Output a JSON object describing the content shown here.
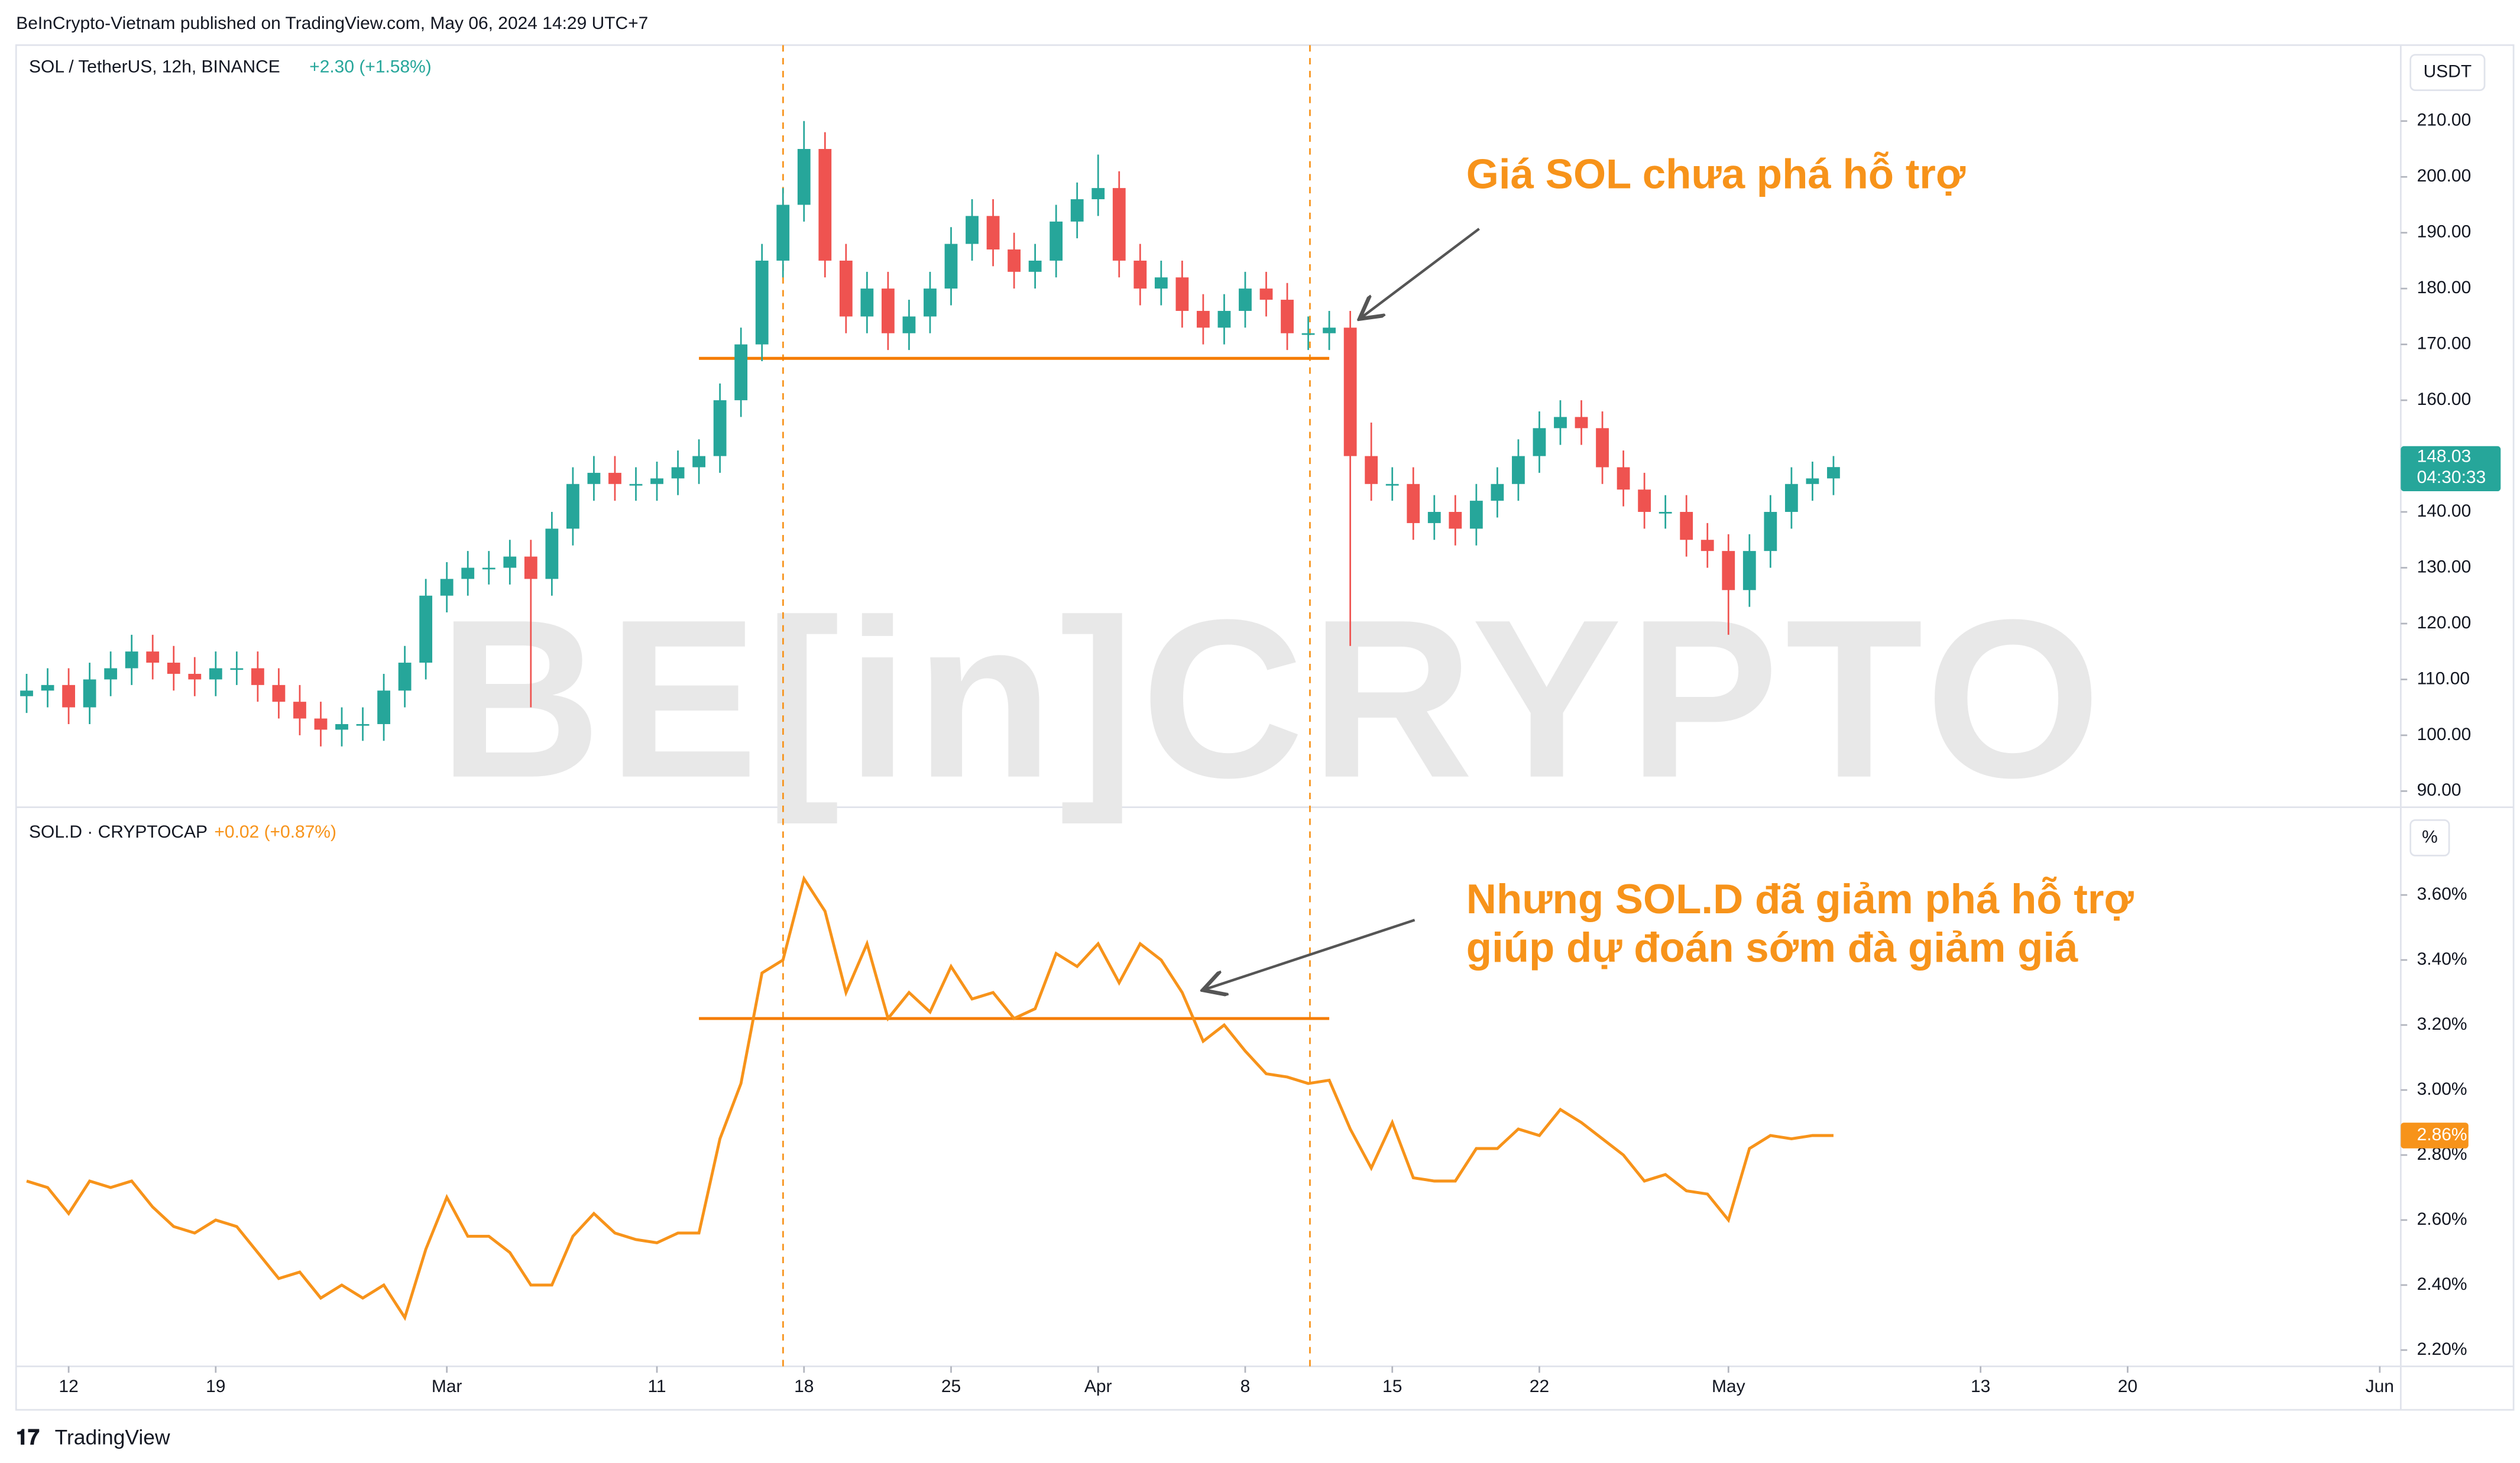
{
  "header": "BeInCrypto-Vietnam published on TradingView.com, May 06, 2024 14:29 UTC+7",
  "footer": "TradingView",
  "watermark": "BE[in]CRYPTO",
  "chart_data": [
    {
      "type": "candlestick",
      "title": "SOL / TetherUS, 12h, BINANCE",
      "change": "+2.30 (+1.58%)",
      "axis_label": "USDT",
      "annotation": "Giá SOL chưa phá hỗ trợ",
      "up_color": "#26a69a",
      "down_color": "#ef5350",
      "xlim": [
        "2024-02-09T12:00",
        "2024-06-02"
      ],
      "ylim": [
        87.4,
        223.6
      ],
      "yticks": [
        {
          "value": 90,
          "label": "90.00"
        },
        {
          "value": 100,
          "label": "100.00"
        },
        {
          "value": 110,
          "label": "110.00"
        },
        {
          "value": 120,
          "label": "120.00"
        },
        {
          "value": 130,
          "label": "130.00"
        },
        {
          "value": 140,
          "label": "140.00"
        },
        {
          "value": 150,
          "label": "150.00"
        },
        {
          "value": 160,
          "label": "160.00"
        },
        {
          "value": 170,
          "label": "170.00"
        },
        {
          "value": 180,
          "label": "180.00"
        },
        {
          "value": 190,
          "label": "190.00"
        },
        {
          "value": 200,
          "label": "200.00"
        },
        {
          "value": 210,
          "label": "210.00"
        }
      ],
      "last_price": {
        "value": 148.03,
        "label": "148.03",
        "countdown": "04:30:33"
      },
      "support": 167.5,
      "support_range": [
        "2024-03-13",
        "2024-04-12"
      ],
      "x": [
        "2024-02-10",
        "2024-02-11",
        "2024-02-12",
        "2024-02-13",
        "2024-02-14",
        "2024-02-15",
        "2024-02-16",
        "2024-02-17",
        "2024-02-18",
        "2024-02-19",
        "2024-02-20",
        "2024-02-21",
        "2024-02-22",
        "2024-02-23",
        "2024-02-24",
        "2024-02-25",
        "2024-02-26",
        "2024-02-27",
        "2024-02-28",
        "2024-02-29",
        "2024-03-01",
        "2024-03-02",
        "2024-03-03",
        "2024-03-04",
        "2024-03-05",
        "2024-03-06",
        "2024-03-07",
        "2024-03-08",
        "2024-03-09",
        "2024-03-10",
        "2024-03-11",
        "2024-03-12",
        "2024-03-13",
        "2024-03-14",
        "2024-03-15",
        "2024-03-16",
        "2024-03-17",
        "2024-03-18",
        "2024-03-19",
        "2024-03-20",
        "2024-03-21",
        "2024-03-22",
        "2024-03-23",
        "2024-03-24",
        "2024-03-25",
        "2024-03-26",
        "2024-03-27",
        "2024-03-28",
        "2024-03-29",
        "2024-03-30",
        "2024-03-31",
        "2024-04-01",
        "2024-04-02",
        "2024-04-03",
        "2024-04-04",
        "2024-04-05",
        "2024-04-06",
        "2024-04-07",
        "2024-04-08",
        "2024-04-09",
        "2024-04-10",
        "2024-04-11",
        "2024-04-12",
        "2024-04-13",
        "2024-04-14",
        "2024-04-15",
        "2024-04-16",
        "2024-04-17",
        "2024-04-18",
        "2024-04-19",
        "2024-04-20",
        "2024-04-21",
        "2024-04-22",
        "2024-04-23",
        "2024-04-24",
        "2024-04-25",
        "2024-04-26",
        "2024-04-27",
        "2024-04-28",
        "2024-04-29",
        "2024-04-30",
        "2024-05-01",
        "2024-05-02",
        "2024-05-03",
        "2024-05-04",
        "2024-05-05",
        "2024-05-06"
      ],
      "open": [
        107,
        108,
        109,
        105,
        110,
        112,
        115,
        113,
        111,
        110,
        112,
        112,
        109,
        106,
        103,
        101,
        102,
        102,
        108,
        113,
        125,
        128,
        130,
        130,
        132,
        128,
        137,
        145,
        147,
        145,
        145,
        146,
        148,
        150,
        160,
        170,
        185,
        195,
        205,
        185,
        175,
        180,
        172,
        175,
        180,
        188,
        193,
        187,
        183,
        185,
        192,
        196,
        198,
        185,
        180,
        182,
        176,
        173,
        176,
        180,
        178,
        172,
        172,
        173,
        150,
        145,
        145,
        138,
        140,
        137,
        142,
        145,
        150,
        155,
        157,
        155,
        148,
        144,
        140,
        140,
        135,
        133,
        126,
        133,
        140,
        145,
        146
      ],
      "high": [
        111,
        112,
        112,
        113,
        115,
        118,
        118,
        116,
        114,
        115,
        115,
        115,
        112,
        109,
        106,
        105,
        105,
        111,
        116,
        128,
        131,
        133,
        133,
        135,
        135,
        140,
        148,
        150,
        150,
        148,
        149,
        151,
        153,
        163,
        173,
        188,
        198,
        210,
        208,
        188,
        183,
        183,
        178,
        183,
        191,
        196,
        196,
        190,
        188,
        195,
        199,
        204,
        201,
        188,
        185,
        185,
        179,
        179,
        183,
        183,
        181,
        175,
        176,
        176,
        156,
        148,
        148,
        143,
        143,
        145,
        148,
        153,
        158,
        160,
        160,
        158,
        151,
        147,
        143,
        143,
        138,
        136,
        136,
        143,
        148,
        149,
        150
      ],
      "low": [
        104,
        105,
        102,
        102,
        107,
        109,
        110,
        108,
        107,
        107,
        109,
        106,
        103,
        100,
        98,
        98,
        99,
        99,
        105,
        110,
        122,
        125,
        127,
        127,
        105,
        125,
        134,
        142,
        142,
        142,
        142,
        143,
        145,
        147,
        157,
        167,
        182,
        192,
        182,
        172,
        172,
        169,
        169,
        172,
        177,
        185,
        184,
        180,
        180,
        182,
        189,
        193,
        182,
        177,
        177,
        173,
        170,
        170,
        173,
        175,
        169,
        169,
        169,
        116,
        142,
        142,
        135,
        135,
        134,
        134,
        139,
        142,
        147,
        152,
        152,
        145,
        141,
        137,
        137,
        132,
        130,
        118,
        123,
        130,
        137,
        142,
        143
      ],
      "close": [
        108,
        109,
        105,
        110,
        112,
        115,
        113,
        111,
        110,
        112,
        112,
        109,
        106,
        103,
        101,
        102,
        102,
        108,
        113,
        125,
        128,
        130,
        130,
        132,
        128,
        137,
        145,
        147,
        145,
        145,
        146,
        148,
        150,
        160,
        170,
        185,
        195,
        205,
        185,
        175,
        180,
        172,
        175,
        180,
        188,
        193,
        187,
        183,
        185,
        192,
        196,
        198,
        185,
        180,
        182,
        176,
        173,
        176,
        180,
        178,
        172,
        172,
        173,
        150,
        145,
        145,
        138,
        140,
        137,
        142,
        145,
        150,
        155,
        157,
        155,
        148,
        144,
        140,
        140,
        135,
        133,
        126,
        133,
        140,
        145,
        146,
        148.03
      ]
    },
    {
      "type": "line",
      "title": "SOL.D · CRYPTOCAP",
      "change": "+0.02 (+0.87%)",
      "axis_label": "%",
      "annotation": [
        "Nhưng SOL.D đã giảm phá hỗ trợ",
        "giúp dự đoán sớm đà giảm giá"
      ],
      "color": "#f7931a",
      "xlim": [
        "2024-02-09T12:00",
        "2024-06-02"
      ],
      "ylim": [
        2.15,
        3.86
      ],
      "yticks": [
        {
          "value": 2.2,
          "label": "2.20%"
        },
        {
          "value": 2.4,
          "label": "2.40%"
        },
        {
          "value": 2.6,
          "label": "2.60%"
        },
        {
          "value": 2.8,
          "label": "2.80%"
        },
        {
          "value": 3.0,
          "label": "3.00%"
        },
        {
          "value": 3.2,
          "label": "3.20%"
        },
        {
          "value": 3.4,
          "label": "3.40%"
        },
        {
          "value": 3.6,
          "label": "3.60%"
        }
      ],
      "xticks": [
        {
          "value": "2024-02-12",
          "label": "12"
        },
        {
          "value": "2024-02-19",
          "label": "19"
        },
        {
          "value": "2024-03-01",
          "label": "Mar"
        },
        {
          "value": "2024-03-11",
          "label": "11"
        },
        {
          "value": "2024-03-18",
          "label": "18"
        },
        {
          "value": "2024-03-25",
          "label": "25"
        },
        {
          "value": "2024-04-01",
          "label": "Apr"
        },
        {
          "value": "2024-04-08",
          "label": "8"
        },
        {
          "value": "2024-04-15",
          "label": "15"
        },
        {
          "value": "2024-04-22",
          "label": "22"
        },
        {
          "value": "2024-05-01",
          "label": "May"
        },
        {
          "value": "2024-05-13",
          "label": "13"
        },
        {
          "value": "2024-05-20",
          "label": "20"
        },
        {
          "value": "2024-06-01",
          "label": "Jun"
        }
      ],
      "last_value": {
        "value": 2.86,
        "label": "2.86%"
      },
      "support": 3.22,
      "support_range": [
        "2024-03-13",
        "2024-04-12"
      ],
      "x": [
        "2024-02-10",
        "2024-02-11",
        "2024-02-12",
        "2024-02-13",
        "2024-02-14",
        "2024-02-15",
        "2024-02-16",
        "2024-02-17",
        "2024-02-18",
        "2024-02-19",
        "2024-02-20",
        "2024-02-21",
        "2024-02-22",
        "2024-02-23",
        "2024-02-24",
        "2024-02-25",
        "2024-02-26",
        "2024-02-27",
        "2024-02-28",
        "2024-02-29",
        "2024-03-01",
        "2024-03-02",
        "2024-03-03",
        "2024-03-04",
        "2024-03-05",
        "2024-03-06",
        "2024-03-07",
        "2024-03-08",
        "2024-03-09",
        "2024-03-10",
        "2024-03-11",
        "2024-03-12",
        "2024-03-13",
        "2024-03-14",
        "2024-03-15",
        "2024-03-16",
        "2024-03-17",
        "2024-03-18",
        "2024-03-19",
        "2024-03-20",
        "2024-03-21",
        "2024-03-22",
        "2024-03-23",
        "2024-03-24",
        "2024-03-25",
        "2024-03-26",
        "2024-03-27",
        "2024-03-28",
        "2024-03-29",
        "2024-03-30",
        "2024-03-31",
        "2024-04-01",
        "2024-04-02",
        "2024-04-03",
        "2024-04-04",
        "2024-04-05",
        "2024-04-06",
        "2024-04-07",
        "2024-04-08",
        "2024-04-09",
        "2024-04-10",
        "2024-04-11",
        "2024-04-12",
        "2024-04-13",
        "2024-04-14",
        "2024-04-15",
        "2024-04-16",
        "2024-04-17",
        "2024-04-18",
        "2024-04-19",
        "2024-04-20",
        "2024-04-21",
        "2024-04-22",
        "2024-04-23",
        "2024-04-24",
        "2024-04-25",
        "2024-04-26",
        "2024-04-27",
        "2024-04-28",
        "2024-04-29",
        "2024-04-30",
        "2024-05-01",
        "2024-05-02",
        "2024-05-03",
        "2024-05-04",
        "2024-05-05",
        "2024-05-06"
      ],
      "values": [
        2.72,
        2.7,
        2.62,
        2.72,
        2.7,
        2.72,
        2.64,
        2.58,
        2.56,
        2.6,
        2.58,
        2.5,
        2.42,
        2.44,
        2.36,
        2.4,
        2.36,
        2.4,
        2.3,
        2.51,
        2.67,
        2.55,
        2.55,
        2.5,
        2.4,
        2.4,
        2.55,
        2.62,
        2.56,
        2.54,
        2.53,
        2.56,
        2.56,
        2.85,
        3.02,
        3.36,
        3.4,
        3.65,
        3.55,
        3.3,
        3.45,
        3.22,
        3.3,
        3.24,
        3.38,
        3.28,
        3.3,
        3.22,
        3.25,
        3.42,
        3.38,
        3.45,
        3.33,
        3.45,
        3.4,
        3.3,
        3.15,
        3.2,
        3.12,
        3.05,
        3.04,
        3.02,
        3.03,
        2.88,
        2.76,
        2.9,
        2.73,
        2.72,
        2.72,
        2.82,
        2.82,
        2.88,
        2.86,
        2.94,
        2.9,
        2.85,
        2.8,
        2.72,
        2.74,
        2.69,
        2.68,
        2.6,
        2.82,
        2.86,
        2.85,
        2.86,
        2.86
      ]
    }
  ]
}
